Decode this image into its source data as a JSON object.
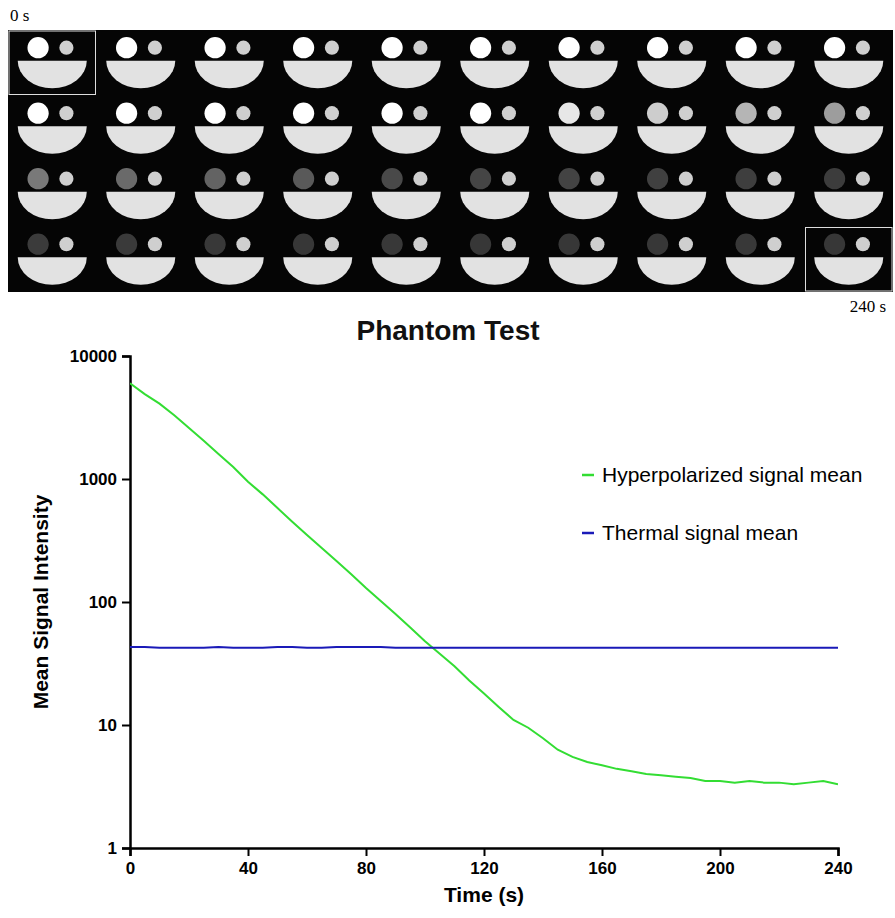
{
  "image_panel": {
    "start_label": "0 s",
    "end_label": "240 s",
    "rows": 4,
    "columns": 10
  },
  "chart_data": {
    "type": "line",
    "title": "Phantom Test",
    "x_label": "Time (s)",
    "y_label": "Mean Signal Intensity",
    "x": [
      0,
      5,
      10,
      15,
      20,
      25,
      30,
      35,
      40,
      45,
      50,
      55,
      60,
      65,
      70,
      75,
      80,
      85,
      90,
      95,
      100,
      105,
      110,
      115,
      120,
      125,
      130,
      135,
      140,
      145,
      150,
      155,
      160,
      165,
      170,
      175,
      180,
      185,
      190,
      195,
      200,
      205,
      210,
      215,
      220,
      225,
      230,
      235,
      240
    ],
    "series": [
      {
        "name": "Hyperpolarized signal mean",
        "color": "#33dd33",
        "values": [
          6000,
          4900,
          4100,
          3300,
          2600,
          2050,
          1600,
          1250,
          950,
          750,
          580,
          450,
          350,
          275,
          215,
          168,
          130,
          102,
          80,
          62,
          48,
          38,
          30,
          23,
          18,
          14,
          11,
          9.5,
          7.8,
          6.3,
          5.5,
          5.0,
          4.7,
          4.4,
          4.2,
          4.0,
          3.9,
          3.8,
          3.7,
          3.5,
          3.5,
          3.4,
          3.5,
          3.4,
          3.4,
          3.3,
          3.4,
          3.5,
          3.3
        ]
      },
      {
        "name": "Thermal signal mean",
        "color": "#1a1ab8",
        "values": [
          43,
          43,
          42.5,
          42.5,
          42.5,
          42.5,
          43,
          42.5,
          42.5,
          42.5,
          43,
          43,
          42.5,
          42.5,
          43,
          43,
          43,
          43,
          42.5,
          42.5,
          42.5,
          42.5,
          42.5,
          42.5,
          42.5,
          42.5,
          42.5,
          42.5,
          42.5,
          42.5,
          42.5,
          42.5,
          42.5,
          42.5,
          42.5,
          42.5,
          42.5,
          42.5,
          42.5,
          42.5,
          42.5,
          42.5,
          42.5,
          42.5,
          42.5,
          42.5,
          42.5,
          42.5,
          42.5
        ]
      }
    ],
    "xlim": [
      0,
      240
    ],
    "xticks": [
      0,
      40,
      80,
      120,
      160,
      200,
      240
    ],
    "ylim": [
      1,
      10000
    ],
    "yticks": [
      1,
      10,
      100,
      1000,
      10000
    ],
    "log": "y",
    "grid": false,
    "legend": "upper right"
  }
}
